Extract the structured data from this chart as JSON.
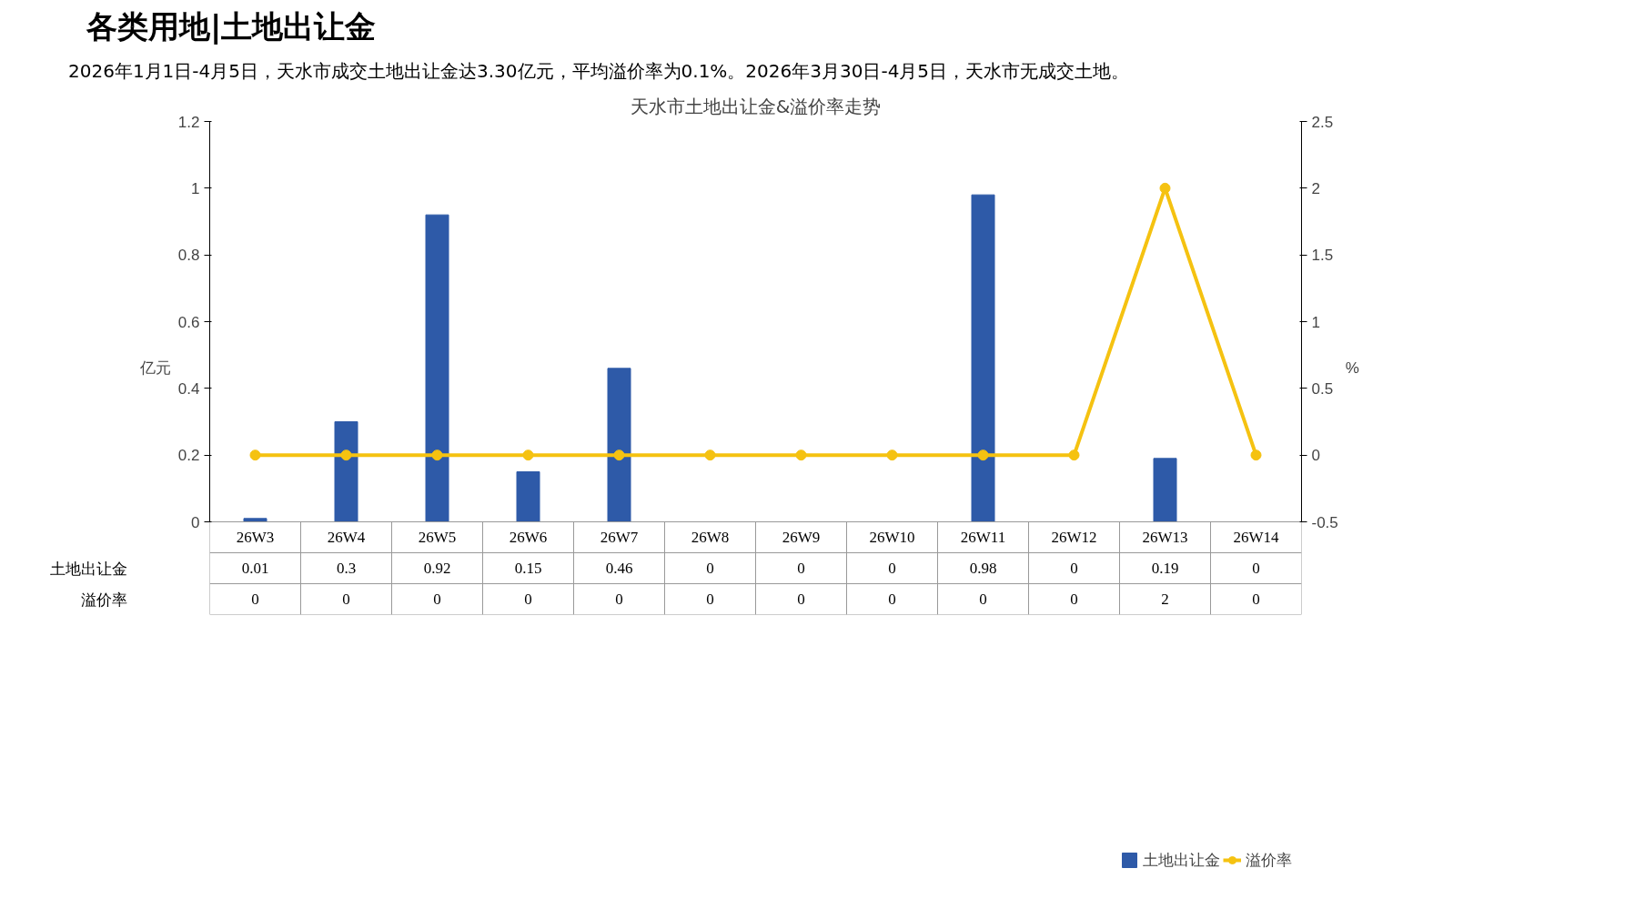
{
  "chart_data": {
    "type": "bar",
    "title": "天水市土地出让金&溢价率走势",
    "subtitle": "各类用地|土地出让金",
    "annotations": [
      "2026年1月1日-4月5日，天水市成交土地出让金达3.30亿元，平均溢价率为0.1%。2026年3月30日-4月5日，天水市无成交土地。"
    ],
    "ylabel": "亿元",
    "y2label": "%",
    "categories": [
      "26W3",
      "26W4",
      "26W5",
      "26W6",
      "26W7",
      "26W8",
      "26W9",
      "26W10",
      "26W11",
      "26W12",
      "26W13",
      "26W14"
    ],
    "series": [
      {
        "name": "土地出让金",
        "color": "#2e5aa8",
        "values": [
          0.01,
          0.3,
          0.92,
          0.15,
          0.46,
          0,
          0,
          0,
          0.98,
          0,
          0.19,
          0
        ]
      },
      {
        "name": "溢价率",
        "type": "line",
        "axis": "y2",
        "color": "#f5c211",
        "values": [
          0,
          0,
          0,
          0,
          0,
          0,
          0,
          0,
          0,
          0,
          2,
          0
        ]
      }
    ],
    "ylim": [
      0,
      1.2
    ],
    "yticks": [
      0,
      0.2,
      0.4,
      0.6,
      0.8,
      1,
      1.2
    ],
    "y2lim": [
      -0.5,
      2.5
    ],
    "y2ticks": [
      -0.5,
      0,
      0.5,
      1,
      1.5,
      2,
      2.5
    ],
    "grid": false,
    "legend": "bottom",
    "marker": "circle",
    "line_style": "solid",
    "data_labels": true
  }
}
